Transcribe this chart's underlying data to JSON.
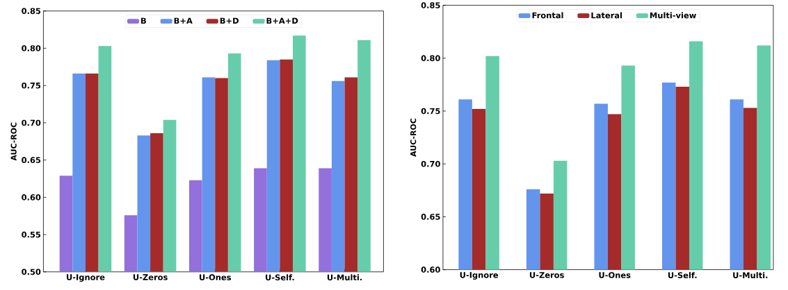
{
  "chart_data": [
    {
      "type": "bar",
      "ylabel": "AUC-ROC",
      "categories": [
        "U-Ignore",
        "U-Zeros",
        "U-Ones",
        "U-Self.",
        "U-Multi."
      ],
      "series": [
        {
          "name": "B",
          "color": "#9370db",
          "values": [
            0.629,
            0.576,
            0.623,
            0.639,
            0.639
          ]
        },
        {
          "name": "B+A",
          "color": "#6495ed",
          "values": [
            0.766,
            0.683,
            0.761,
            0.784,
            0.756
          ]
        },
        {
          "name": "B+D",
          "color": "#a52a2a",
          "values": [
            0.766,
            0.686,
            0.76,
            0.785,
            0.761
          ]
        },
        {
          "name": "B+A+D",
          "color": "#66cdaa",
          "values": [
            0.803,
            0.704,
            0.793,
            0.817,
            0.811
          ]
        }
      ],
      "ylim": [
        0.5,
        0.85
      ],
      "yticks": [
        {
          "value": 0.5,
          "label": "0.50"
        },
        {
          "value": 0.55,
          "label": "0.55"
        },
        {
          "value": 0.6,
          "label": "0.60"
        },
        {
          "value": 0.65,
          "label": "0.65"
        },
        {
          "value": 0.7,
          "label": "0.70"
        },
        {
          "value": 0.75,
          "label": "0.75"
        },
        {
          "value": 0.8,
          "label": "0.80"
        },
        {
          "value": 0.85,
          "label": "0.85"
        }
      ],
      "legend": "top",
      "grid": false
    },
    {
      "type": "bar",
      "ylabel": "AUC-ROC",
      "categories": [
        "U-Ignore",
        "U-Zeros",
        "U-Ones",
        "U-Self.",
        "U-Multi."
      ],
      "series": [
        {
          "name": "Frontal",
          "color": "#6495ed",
          "values": [
            0.761,
            0.676,
            0.757,
            0.777,
            0.761
          ]
        },
        {
          "name": "Lateral",
          "color": "#a52a2a",
          "values": [
            0.752,
            0.672,
            0.747,
            0.773,
            0.753
          ]
        },
        {
          "name": "Multi-view",
          "color": "#66cdaa",
          "values": [
            0.802,
            0.703,
            0.793,
            0.816,
            0.812
          ]
        }
      ],
      "ylim": [
        0.6,
        0.85
      ],
      "yticks": [
        {
          "value": 0.6,
          "label": "0.60"
        },
        {
          "value": 0.65,
          "label": "0.65"
        },
        {
          "value": 0.7,
          "label": "0.70"
        },
        {
          "value": 0.75,
          "label": "0.75"
        },
        {
          "value": 0.8,
          "label": "0.80"
        },
        {
          "value": 0.85,
          "label": "0.85"
        }
      ],
      "legend": "top",
      "grid": false
    }
  ]
}
